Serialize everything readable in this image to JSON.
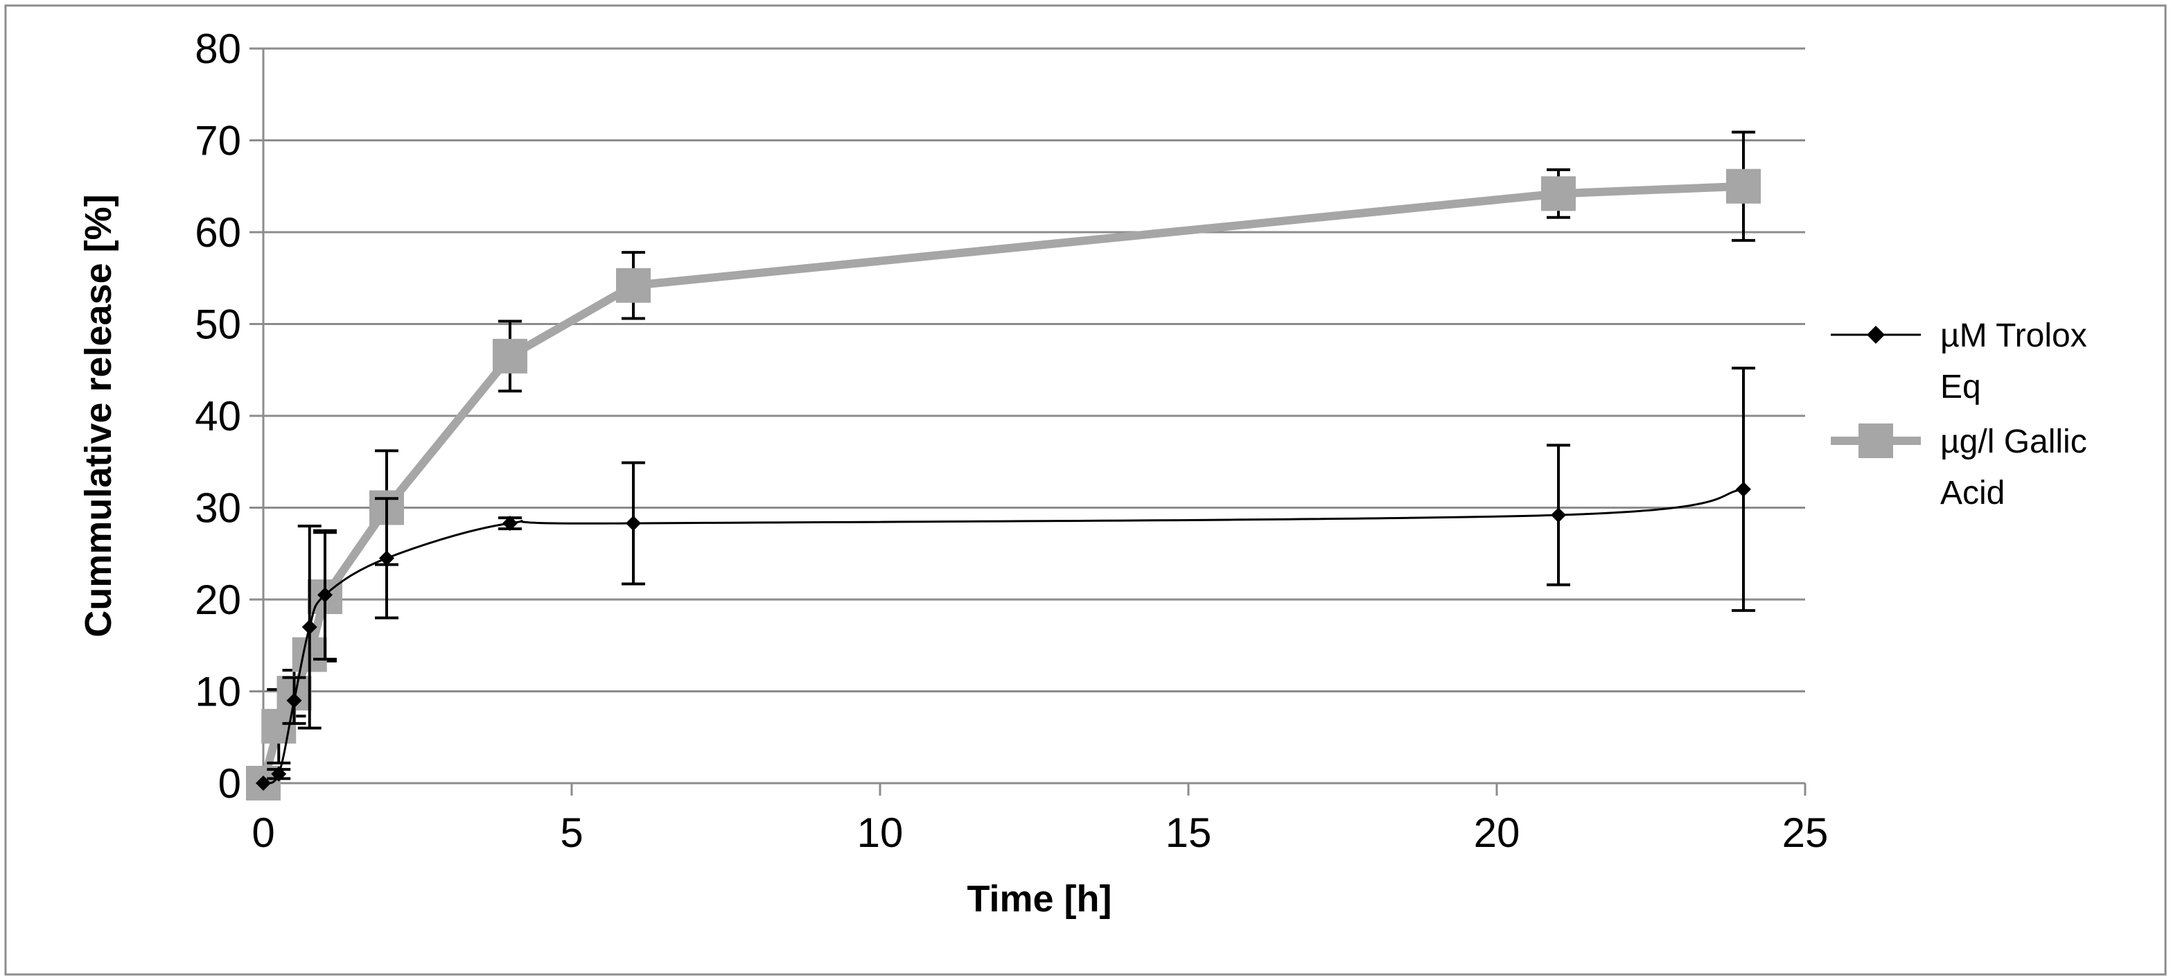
{
  "chart_data": {
    "type": "line",
    "xlabel": "Time [h]",
    "ylabel": "Cummulative release [%]",
    "xlim": [
      0,
      25
    ],
    "ylim": [
      0,
      80
    ],
    "xticks": [
      "0",
      "5",
      "10",
      "15",
      "20",
      "25"
    ],
    "yticks": [
      "0",
      "10",
      "20",
      "30",
      "40",
      "50",
      "60",
      "70",
      "80"
    ],
    "grid": "horizontal",
    "legend_position": "right",
    "series": [
      {
        "name_lines": [
          "µM Trolox",
          "Eq"
        ],
        "marker": "diamond",
        "color": "#000000",
        "x": [
          0,
          0.25,
          0.5,
          0.75,
          1,
          2,
          4,
          6,
          21,
          24
        ],
        "y": [
          0,
          1,
          9,
          17,
          20.5,
          24.5,
          28.3,
          28.3,
          29.2,
          32
        ],
        "err": [
          0,
          0.5,
          2.5,
          11,
          7,
          6.5,
          0.6,
          6.6,
          7.6,
          13.2
        ]
      },
      {
        "name_lines": [
          "µg/l Gallic",
          "Acid"
        ],
        "marker": "square",
        "color": "#a6a6a6",
        "x": [
          0,
          0.25,
          0.5,
          0.75,
          1,
          2,
          4,
          6,
          21,
          24
        ],
        "y": [
          0,
          6.2,
          9.8,
          14,
          20.3,
          30,
          46.5,
          54.2,
          64.2,
          65
        ],
        "err": [
          0,
          4,
          2.5,
          1.3,
          7,
          6.2,
          3.8,
          3.6,
          2.6,
          5.9
        ]
      }
    ]
  }
}
